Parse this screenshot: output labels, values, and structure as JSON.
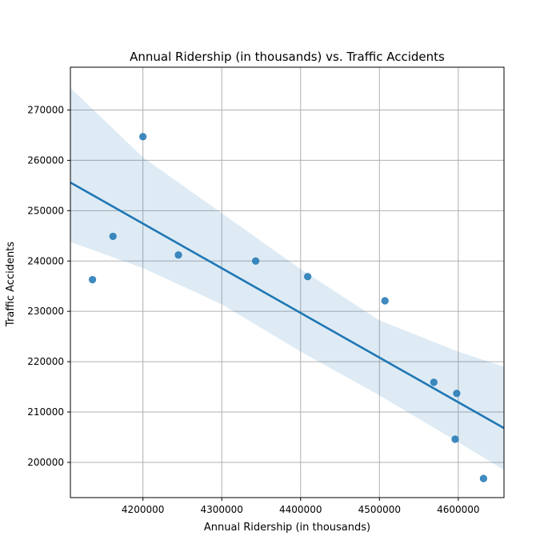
{
  "chart_data": {
    "type": "scatter",
    "title": "Annual Ridership (in thousands) vs. Traffic Accidents",
    "xlabel": "Annual Ridership (in thousands)",
    "ylabel": "Traffic Accidents",
    "xlim": [
      4108000,
      4658000
    ],
    "ylim": [
      193000,
      278500
    ],
    "xticks": [
      4200000,
      4300000,
      4400000,
      4500000,
      4600000
    ],
    "yticks": [
      200000,
      210000,
      220000,
      230000,
      240000,
      250000,
      260000,
      270000
    ],
    "grid": true,
    "points": [
      {
        "x": 4136000,
        "y": 236300
      },
      {
        "x": 4162000,
        "y": 244900
      },
      {
        "x": 4200000,
        "y": 264700
      },
      {
        "x": 4245000,
        "y": 241200
      },
      {
        "x": 4343000,
        "y": 240000
      },
      {
        "x": 4409000,
        "y": 236900
      },
      {
        "x": 4507000,
        "y": 232100
      },
      {
        "x": 4569000,
        "y": 215900
      },
      {
        "x": 4598000,
        "y": 213700
      },
      {
        "x": 4596000,
        "y": 204600
      },
      {
        "x": 4632000,
        "y": 196800
      }
    ],
    "regression": {
      "x": [
        4108000,
        4658000
      ],
      "y": [
        255600,
        206800
      ]
    },
    "confidence_band": {
      "x": [
        4108000,
        4200000,
        4300000,
        4400000,
        4500000,
        4600000,
        4658000
      ],
      "upper": [
        274400,
        260600,
        249500,
        238400,
        228200,
        222000,
        219000
      ],
      "lower": [
        243800,
        238600,
        231400,
        222000,
        213300,
        204000,
        198500
      ]
    },
    "colors": {
      "marker": "#1f77b4",
      "line": "#1f77b4",
      "band": "#1f77b4",
      "grid": "#b0b0b0"
    }
  }
}
